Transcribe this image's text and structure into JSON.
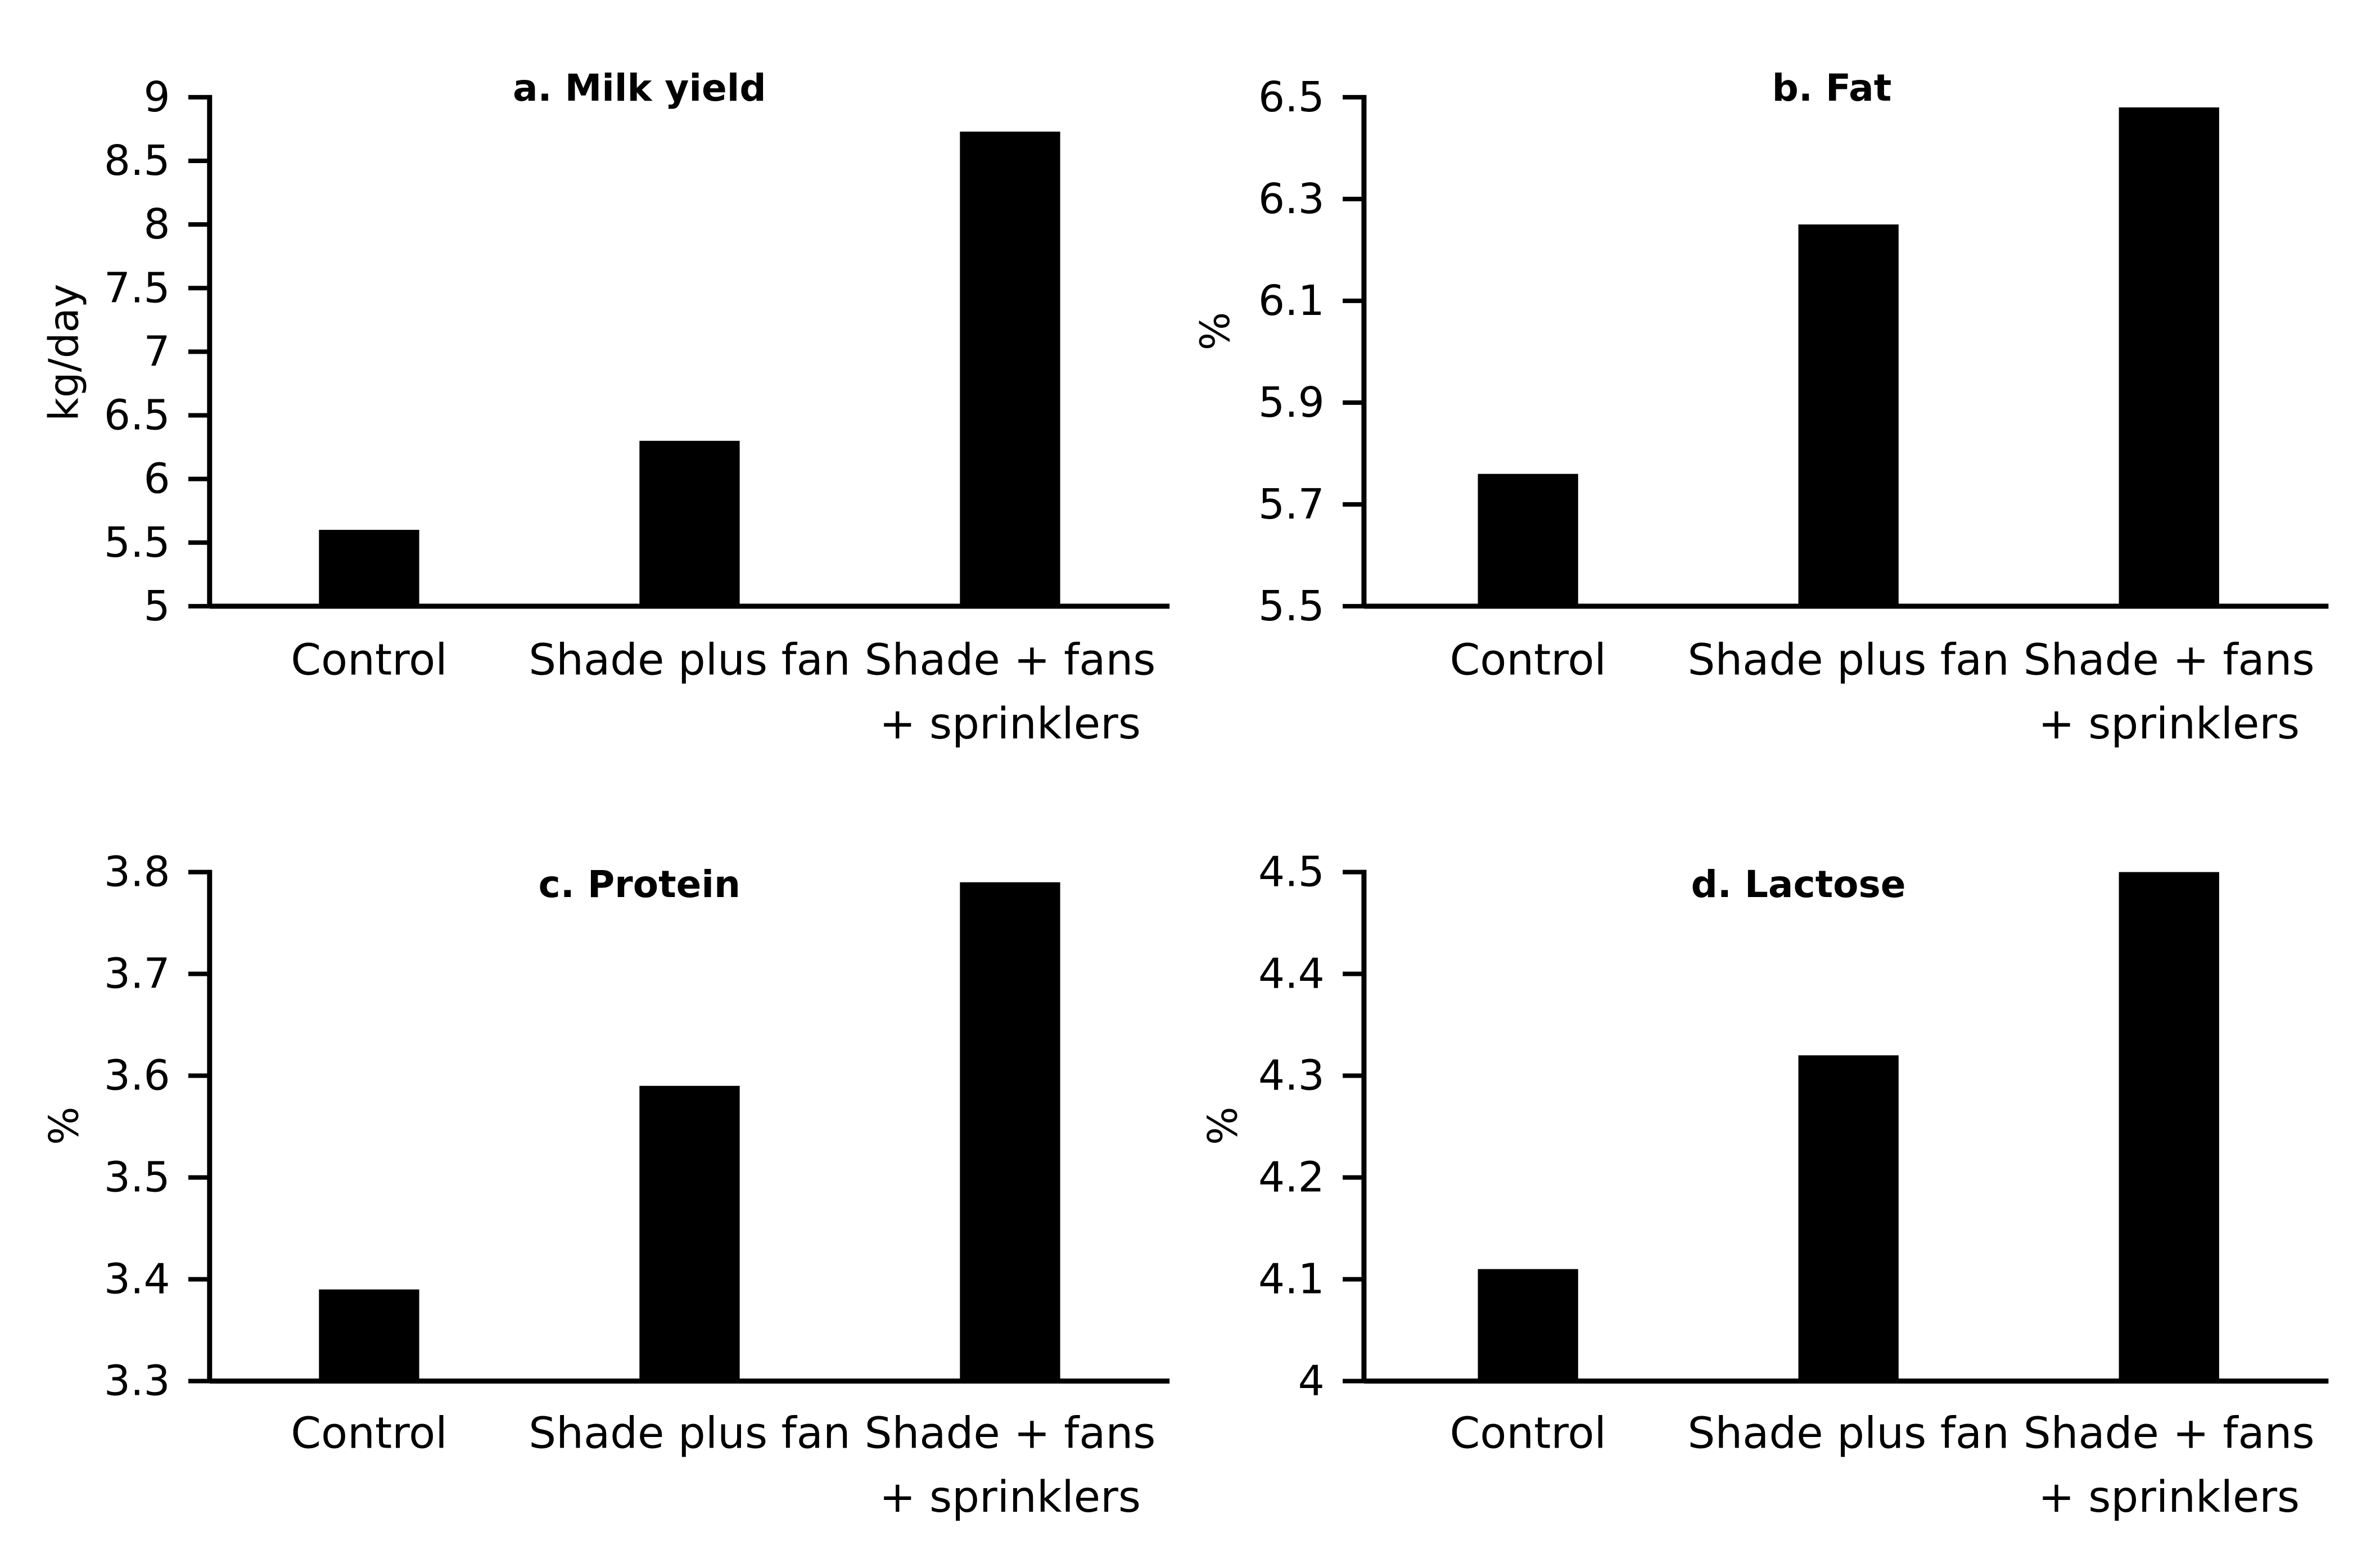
{
  "colors": {
    "bar": "#000000",
    "axis": "#000000",
    "background": "#ffffff"
  },
  "chart_data": [
    {
      "type": "bar",
      "title": "a. Milk yield",
      "ylabel": "kg/day",
      "categories": [
        [
          "Control"
        ],
        [
          "Shade plus fan"
        ],
        [
          "Shade + fans",
          "+ sprinklers"
        ]
      ],
      "values": [
        5.6,
        6.3,
        8.73
      ],
      "ylim": [
        5,
        9
      ],
      "yticks": [
        "5",
        "5.5",
        "6",
        "6.5",
        "7",
        "7.5",
        "8",
        "8.5",
        "9"
      ],
      "grid": false
    },
    {
      "type": "bar",
      "title": "b. Fat",
      "ylabel": "%",
      "categories": [
        [
          "Control"
        ],
        [
          "Shade plus fan"
        ],
        [
          "Shade + fans",
          "+ sprinklers"
        ]
      ],
      "values": [
        5.76,
        6.25,
        6.48
      ],
      "ylim": [
        5.5,
        6.5
      ],
      "yticks": [
        "5.5",
        "5.7",
        "5.9",
        "6.1",
        "6.3",
        "6.5"
      ],
      "grid": false
    },
    {
      "type": "bar",
      "title": "c. Protein",
      "ylabel": "%",
      "categories": [
        [
          "Control"
        ],
        [
          "Shade plus fan"
        ],
        [
          "Shade + fans",
          "+ sprinklers"
        ]
      ],
      "values": [
        3.39,
        3.59,
        3.79
      ],
      "ylim": [
        3.3,
        3.8
      ],
      "yticks": [
        "3.3",
        "3.4",
        "3.5",
        "3.6",
        "3.7",
        "3.8"
      ],
      "grid": false
    },
    {
      "type": "bar",
      "title": "d. Lactose",
      "ylabel": "%",
      "categories": [
        [
          "Control"
        ],
        [
          "Shade plus fan"
        ],
        [
          "Shade + fans",
          "+ sprinklers"
        ]
      ],
      "values": [
        4.11,
        4.32,
        4.5
      ],
      "ylim": [
        4,
        4.5
      ],
      "yticks": [
        "4",
        "4.1",
        "4.2",
        "4.3",
        "4.4",
        "4.5"
      ],
      "grid": false
    }
  ]
}
